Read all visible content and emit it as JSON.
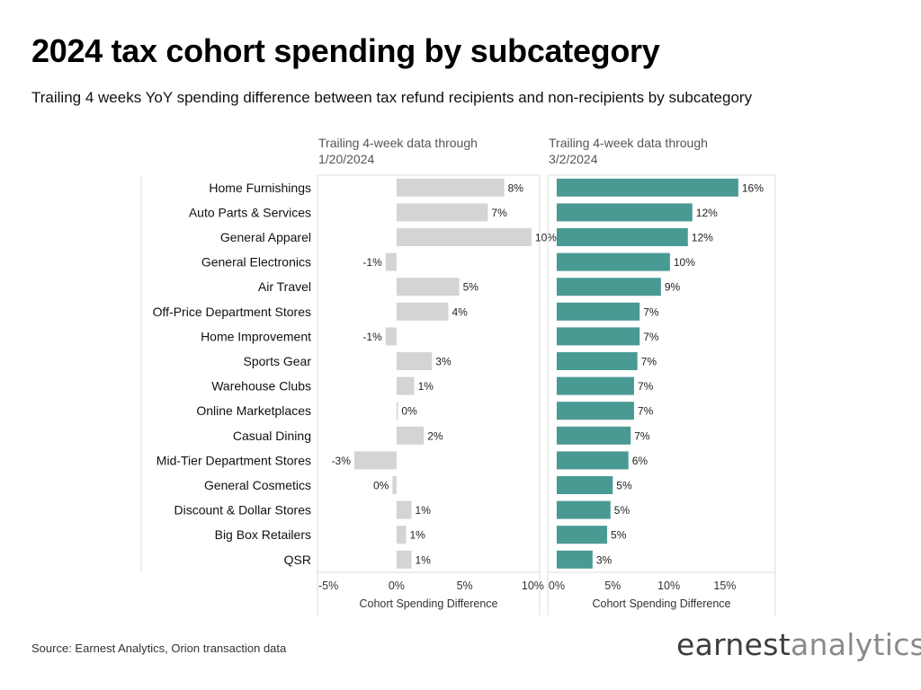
{
  "title": "2024 tax cohort spending by subcategory",
  "subtitle": "Trailing 4 weeks YoY spending difference between tax refund recipients and non-recipients by subcategory",
  "source": "Source: Earnest Analytics, Orion transaction data",
  "logo": {
    "part1": "earnest",
    "part2": "analytics"
  },
  "colors": {
    "left_bar": "#d4d4d4",
    "right_bar": "#4a9a94"
  },
  "chart_data": [
    {
      "type": "bar",
      "orientation": "horizontal",
      "title_lines": [
        "Trailing 4-week data through",
        "1/20/2024"
      ],
      "xlabel": "Cohort Spending Difference",
      "xlim": [
        -5.8,
        10.5
      ],
      "ticks": [
        -5,
        0,
        5,
        10
      ],
      "tick_labels": [
        "-5%",
        "0%",
        "5%",
        "10%"
      ],
      "categories": [
        "Home Furnishings",
        "Auto Parts & Services",
        "General Apparel",
        "General Electronics",
        "Air Travel",
        "Off-Price Department Stores",
        "Home Improvement",
        "Sports Gear",
        "Warehouse Clubs",
        "Online Marketplaces",
        "Casual Dining",
        "Mid-Tier Department Stores",
        "General Cosmetics",
        "Discount & Dollar Stores",
        "Big Box Retailers",
        "QSR"
      ],
      "values": [
        7.9,
        6.7,
        9.9,
        -0.8,
        4.6,
        3.8,
        -0.8,
        2.6,
        1.3,
        0.1,
        2.0,
        -3.1,
        -0.3,
        1.1,
        0.7,
        1.1
      ],
      "labels": [
        "8%",
        "7%",
        "10%",
        "-1%",
        "5%",
        "4%",
        "-1%",
        "3%",
        "1%",
        "0%",
        "2%",
        "-3%",
        "0%",
        "1%",
        "1%",
        "1%"
      ]
    },
    {
      "type": "bar",
      "orientation": "horizontal",
      "title_lines": [
        "Trailing 4-week data through",
        "3/2/2024"
      ],
      "xlabel": "Cohort Spending Difference",
      "xlim": [
        -0.8,
        19.5
      ],
      "ticks": [
        0,
        5,
        10,
        15
      ],
      "tick_labels": [
        "0%",
        "5%",
        "10%",
        "15%"
      ],
      "categories": [
        "Home Furnishings",
        "Auto Parts & Services",
        "General Apparel",
        "General Electronics",
        "Air Travel",
        "Off-Price Department Stores",
        "Home Improvement",
        "Sports Gear",
        "Warehouse Clubs",
        "Online Marketplaces",
        "Casual Dining",
        "Mid-Tier Department Stores",
        "General Cosmetics",
        "Discount & Dollar Stores",
        "Big Box Retailers",
        "QSR"
      ],
      "values": [
        16.2,
        12.1,
        11.7,
        10.1,
        9.3,
        7.4,
        7.4,
        7.2,
        6.9,
        6.9,
        6.6,
        6.4,
        5.0,
        4.8,
        4.5,
        3.2
      ],
      "labels": [
        "16%",
        "12%",
        "12%",
        "10%",
        "9%",
        "7%",
        "7%",
        "7%",
        "7%",
        "7%",
        "7%",
        "6%",
        "5%",
        "5%",
        "5%",
        "3%"
      ]
    }
  ]
}
